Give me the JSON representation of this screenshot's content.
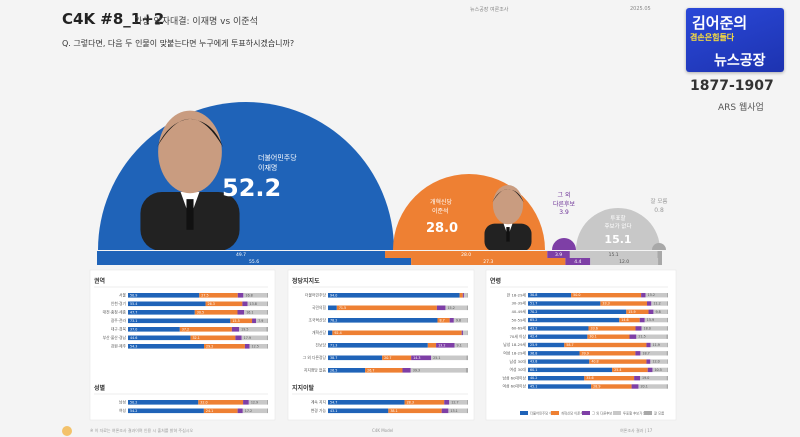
{
  "header": {
    "code": "C4K #8_1+2",
    "subtitle": "가상 양자대결: 이재명 vs 이준석",
    "meta_left": "뉴스공장 여론조사",
    "meta_right": "2025.05",
    "question": "Q. 그렇다면, 다음 두 인물이 맞붙는다면 누구에게 투표하시겠습니까?"
  },
  "logo": {
    "line1": "김어준의",
    "line2": "겸손은힘들다",
    "line3": "뉴스공장",
    "phone": "1877-1907",
    "ars": "ARS 웹사업"
  },
  "chart_data": [
    {
      "type": "semicircle",
      "title": "",
      "categories": [
        "더불어민주당 이재명",
        "개혁신당 이준석",
        "그 외 다른후보",
        "투표할 후보가 없다",
        "잘 모름"
      ],
      "values": [
        52.2,
        28.0,
        3.9,
        15.1,
        0.8
      ],
      "colors": [
        "#1f63b8",
        "#ee8033",
        "#7e3fa6",
        "#c8c8c8",
        "#a8a8a8"
      ],
      "labels": [
        {
          "party": "더불어민주당",
          "name": "이재명",
          "value": "52.2"
        },
        {
          "party": "개혁신당",
          "name": "이준석",
          "value": "28.0"
        },
        {
          "party": "그 외",
          "name": "다른후보",
          "value": "3.9"
        },
        {
          "party": "투표할",
          "name": "후보가 없다",
          "value": "15.1"
        },
        {
          "party": "잘 모름",
          "name": "",
          "value": "0.8"
        }
      ],
      "stack_top": [
        {
          "label": "49.7",
          "value": 49.7
        },
        {
          "label": "28.0",
          "value": 28.0
        },
        {
          "label": "3.9",
          "value": 3.9
        },
        {
          "label": "15.1",
          "value": 15.1
        },
        {
          "label": "",
          "value": 0.8
        }
      ],
      "stack_bottom": [
        {
          "label": "55.6",
          "value": 55.6
        },
        {
          "label": "27.3",
          "value": 27.3
        },
        {
          "label": "4.4",
          "value": 4.4
        },
        {
          "label": "12.0",
          "value": 12.0
        },
        {
          "label": "",
          "value": 0.7
        }
      ]
    },
    {
      "type": "bar",
      "orientation": "horizontal",
      "stacked": true,
      "title": "권역",
      "categories": [
        "서울",
        "인천·경기",
        "대전·충청·세종",
        "광주·전라",
        "대구·경북",
        "부산·울산·경남",
        "강원·제주"
      ],
      "rows": [
        [
          50.9,
          27.5,
          4.0,
          16.8,
          0.8
        ],
        [
          55.4,
          26.3,
          3.7,
          13.8,
          0.8
        ],
        [
          47.7,
          30.5,
          4.8,
          16.1,
          0.9
        ],
        [
          73.1,
          15.5,
          2.9,
          7.9,
          0.6
        ],
        [
          37.0,
          37.2,
          5.2,
          19.5,
          1.1
        ],
        [
          44.6,
          32.1,
          4.5,
          17.9,
          0.9
        ],
        [
          54.3,
          29.2,
          3.3,
          12.5,
          0.7
        ]
      ]
    },
    {
      "type": "bar",
      "orientation": "horizontal",
      "stacked": true,
      "title": "성별",
      "categories": [
        "남성",
        "여성"
      ],
      "rows": [
        [
          50.2,
          32.0,
          4.1,
          12.9,
          0.8
        ],
        [
          54.2,
          24.1,
          3.7,
          17.2,
          0.8
        ]
      ]
    },
    {
      "type": "bar",
      "orientation": "horizontal",
      "stacked": true,
      "title": "정당지지도",
      "categories": [
        "더불어민주당",
        "국민의힘",
        "조국혁신당",
        "개혁신당",
        "진보당",
        "그 외 다른정당",
        "지지정당 없음"
      ],
      "rows": [
        [
          94.0,
          2.3,
          0.8,
          2.5,
          0.4
        ],
        [
          6.3,
          71.5,
          6.1,
          15.2,
          0.9
        ],
        [
          78.2,
          8.7,
          3.0,
          9.6,
          0.5
        ],
        [
          3.1,
          92.4,
          0.9,
          3.3,
          0.3
        ],
        [
          71.3,
          5.9,
          13.2,
          9.1,
          0.5
        ],
        [
          38.7,
          20.7,
          14.3,
          25.1,
          1.2
        ],
        [
          26.5,
          26.7,
          5.9,
          39.3,
          1.6
        ]
      ]
    },
    {
      "type": "bar",
      "orientation": "horizontal",
      "stacked": true,
      "title": "지지이탈",
      "categories": [
        "계속 지지",
        "변경 가능"
      ],
      "rows": [
        [
          54.7,
          28.3,
          3.6,
          12.7,
          0.7
        ],
        [
          43.1,
          38.1,
          4.8,
          13.1,
          0.9
        ]
      ]
    },
    {
      "type": "bar",
      "orientation": "horizontal",
      "stacked": true,
      "title": "연령",
      "categories": [
        "만 18-29세",
        "30-39세",
        "40-49세",
        "50-59세",
        "60-69세",
        "70세 이상",
        "남성 18-29세",
        "여성 18-29세",
        "남성 30대",
        "여성 30대",
        "남성 60대이상",
        "여성 60대이상"
      ],
      "rows": [
        [
          30.8,
          50.0,
          3.2,
          15.2,
          0.8
        ],
        [
          51.7,
          33.3,
          3.1,
          11.2,
          0.7
        ],
        [
          70.2,
          15.9,
          3.5,
          9.8,
          0.6
        ],
        [
          65.2,
          14.6,
          3.6,
          15.9,
          0.7
        ],
        [
          43.2,
          33.6,
          4.3,
          18.0,
          0.9
        ],
        [
          42.4,
          30.1,
          4.9,
          21.5,
          1.1
        ],
        [
          25.9,
          58.7,
          2.9,
          11.9,
          0.6
        ],
        [
          36.8,
          39.9,
          3.6,
          18.7,
          1.0
        ],
        [
          43.8,
          40.8,
          2.8,
          12.0,
          0.6
        ],
        [
          60.1,
          25.4,
          3.4,
          10.5,
          0.6
        ],
        [
          40.2,
          35.6,
          4.2,
          19.0,
          1.0
        ],
        [
          45.1,
          28.9,
          4.9,
          20.1,
          1.0
        ]
      ]
    }
  ],
  "legend": [
    "더불어민주당 이재명",
    "개혁신당 이준석",
    "그 외 다른후보",
    "투표할 후보가 없다",
    "잘 모름"
  ],
  "footer": {
    "left": "※ 이 자료는 여론조사 결과이며 인용 시 출처를 밝혀 주십시오",
    "center": "C4K Model",
    "right": "여론조사 결과 | 17"
  }
}
